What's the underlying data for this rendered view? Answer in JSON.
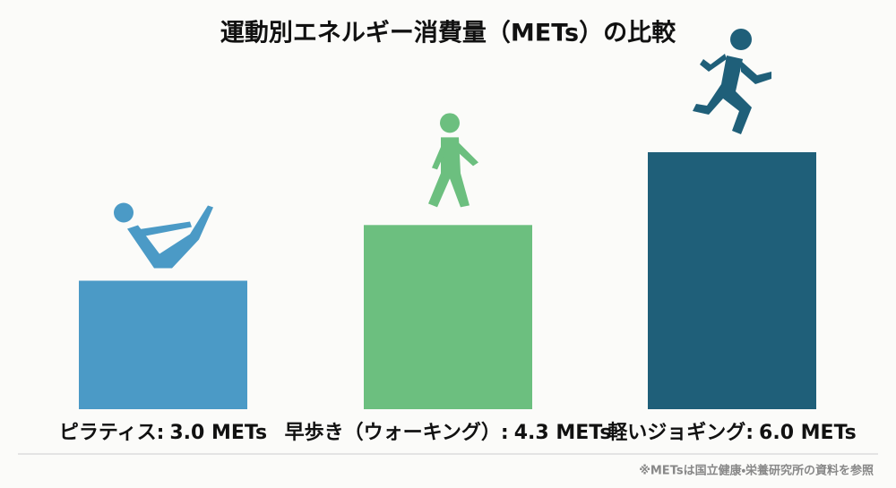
{
  "chart_data": {
    "type": "bar",
    "title": "運動別エネルギー消費量（METs）の比較",
    "categories": [
      "ピラティス:",
      "早歩き（ウォーキング）:",
      "軽いジョギング:"
    ],
    "values": [
      3.0,
      4.3,
      6.0
    ],
    "value_labels": [
      "3.0 METs",
      "4.3 METs",
      "6.0 METs"
    ],
    "colors": [
      "#4b9ac6",
      "#6cbf7f",
      "#1f5f79"
    ],
    "note": "※METsは国立健康・栄養研究所の資料を参照"
  }
}
